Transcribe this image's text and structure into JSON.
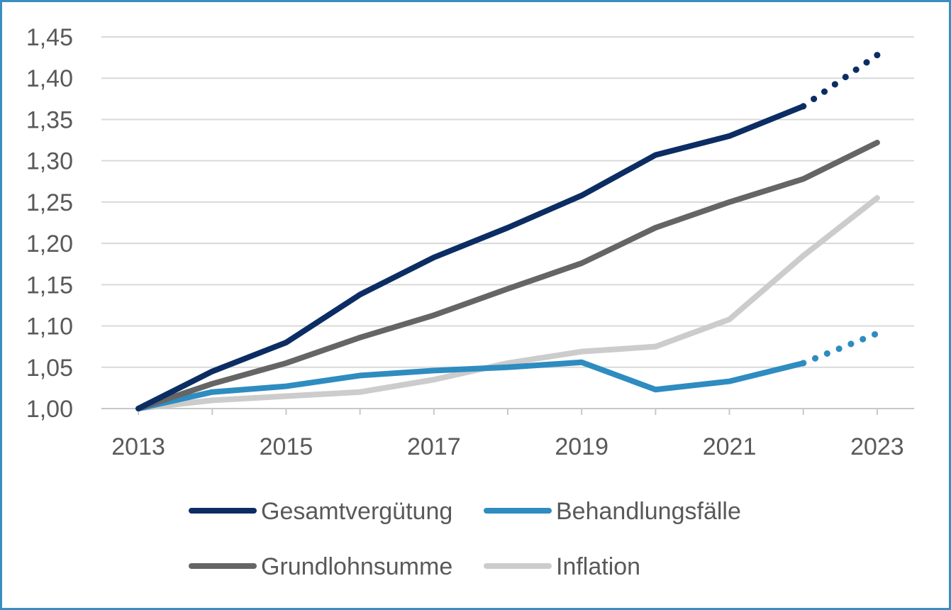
{
  "chart_data": {
    "type": "line",
    "x": [
      2013,
      2014,
      2015,
      2016,
      2017,
      2018,
      2019,
      2020,
      2021,
      2022,
      2023
    ],
    "xticks": [
      "2013",
      "2015",
      "2017",
      "2019",
      "2021",
      "2023"
    ],
    "xtick_values": [
      2013,
      2015,
      2017,
      2019,
      2021,
      2023
    ],
    "yticks": [
      "1,00",
      "1,05",
      "1,10",
      "1,15",
      "1,20",
      "1,25",
      "1,30",
      "1,35",
      "1,40",
      "1,45"
    ],
    "ytick_values": [
      1.0,
      1.05,
      1.1,
      1.15,
      1.2,
      1.25,
      1.3,
      1.35,
      1.4,
      1.45
    ],
    "ylim": [
      1.0,
      1.45
    ],
    "xlim": [
      2012.5,
      2023.5
    ],
    "grid": "horizontal",
    "legend_position": "bottom",
    "series": [
      {
        "name": "Gesamtvergütung",
        "color": "#0c2d63",
        "values": [
          1.0,
          1.045,
          1.08,
          1.138,
          1.183,
          1.219,
          1.258,
          1.307,
          1.33,
          1.366,
          1.428
        ],
        "projected_from_index": 9
      },
      {
        "name": "Behandlungsfälle",
        "color": "#2e8cc0",
        "values": [
          1.0,
          1.02,
          1.027,
          1.04,
          1.046,
          1.05,
          1.056,
          1.023,
          1.033,
          1.055,
          1.091
        ],
        "projected_from_index": 9
      },
      {
        "name": "Grundlohnsumme",
        "color": "#656565",
        "values": [
          1.0,
          1.03,
          1.055,
          1.086,
          1.113,
          1.145,
          1.176,
          1.219,
          1.25,
          1.278,
          1.322
        ]
      },
      {
        "name": "Inflation",
        "color": "#cccccc",
        "values": [
          1.0,
          1.01,
          1.015,
          1.02,
          1.035,
          1.055,
          1.069,
          1.075,
          1.108,
          1.185,
          1.255
        ]
      }
    ]
  }
}
